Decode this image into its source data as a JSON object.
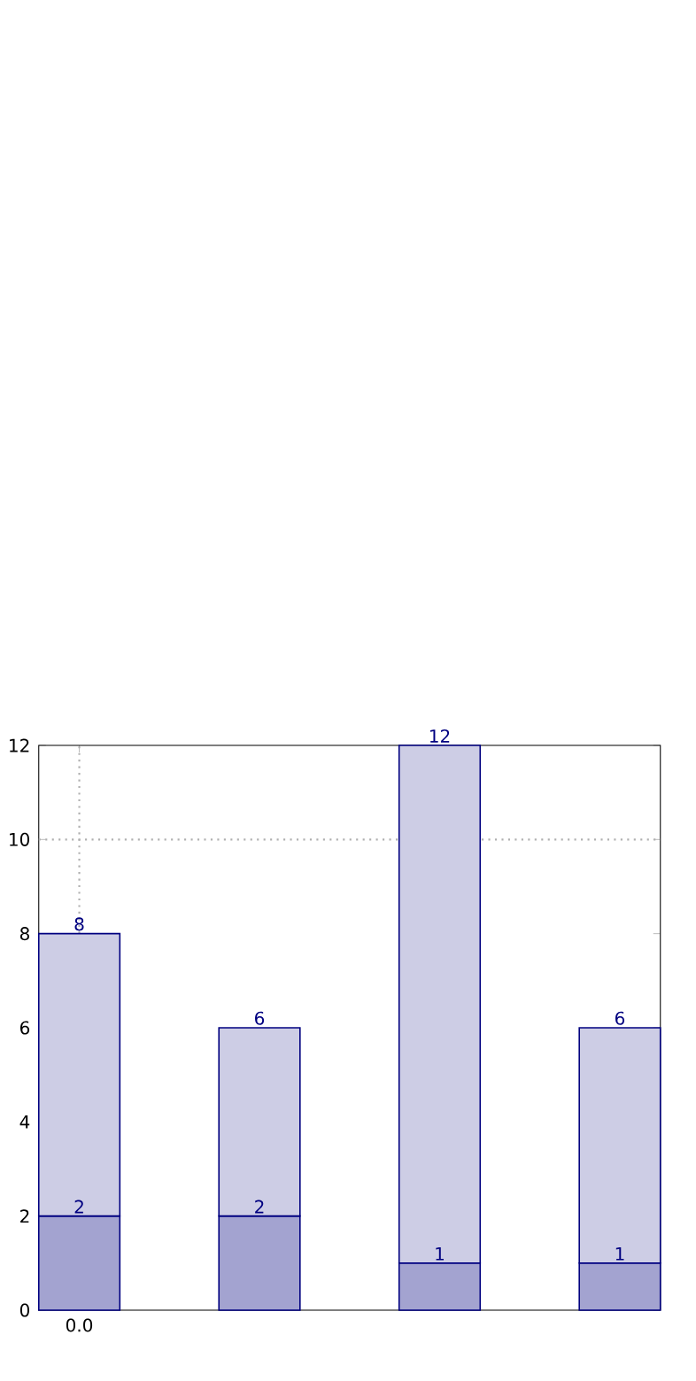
{
  "chart_data": {
    "type": "bar",
    "categories": [
      "0.0",
      null,
      null,
      null
    ],
    "ylim": [
      0,
      12
    ],
    "yticks": [
      0,
      2,
      4,
      6,
      8,
      10,
      12
    ],
    "series": [
      {
        "color": "#a3a3d0",
        "values": [
          2,
          2,
          1,
          1
        ],
        "value_labels": [
          "2",
          "2",
          "1",
          "1"
        ]
      },
      {
        "color": "#cdcde5",
        "values": [
          6,
          4,
          11,
          5
        ]
      }
    ],
    "stacked": true,
    "totals": [
      "8",
      "6",
      "12",
      "6"
    ],
    "ref_lines": [
      {
        "axis": "y",
        "value": 10,
        "color": "#b0b0b0",
        "line_style": "dotted"
      },
      {
        "axis": "x",
        "value": "0.0",
        "color": "#b0b0b0",
        "line_style": "dotted"
      }
    ]
  }
}
